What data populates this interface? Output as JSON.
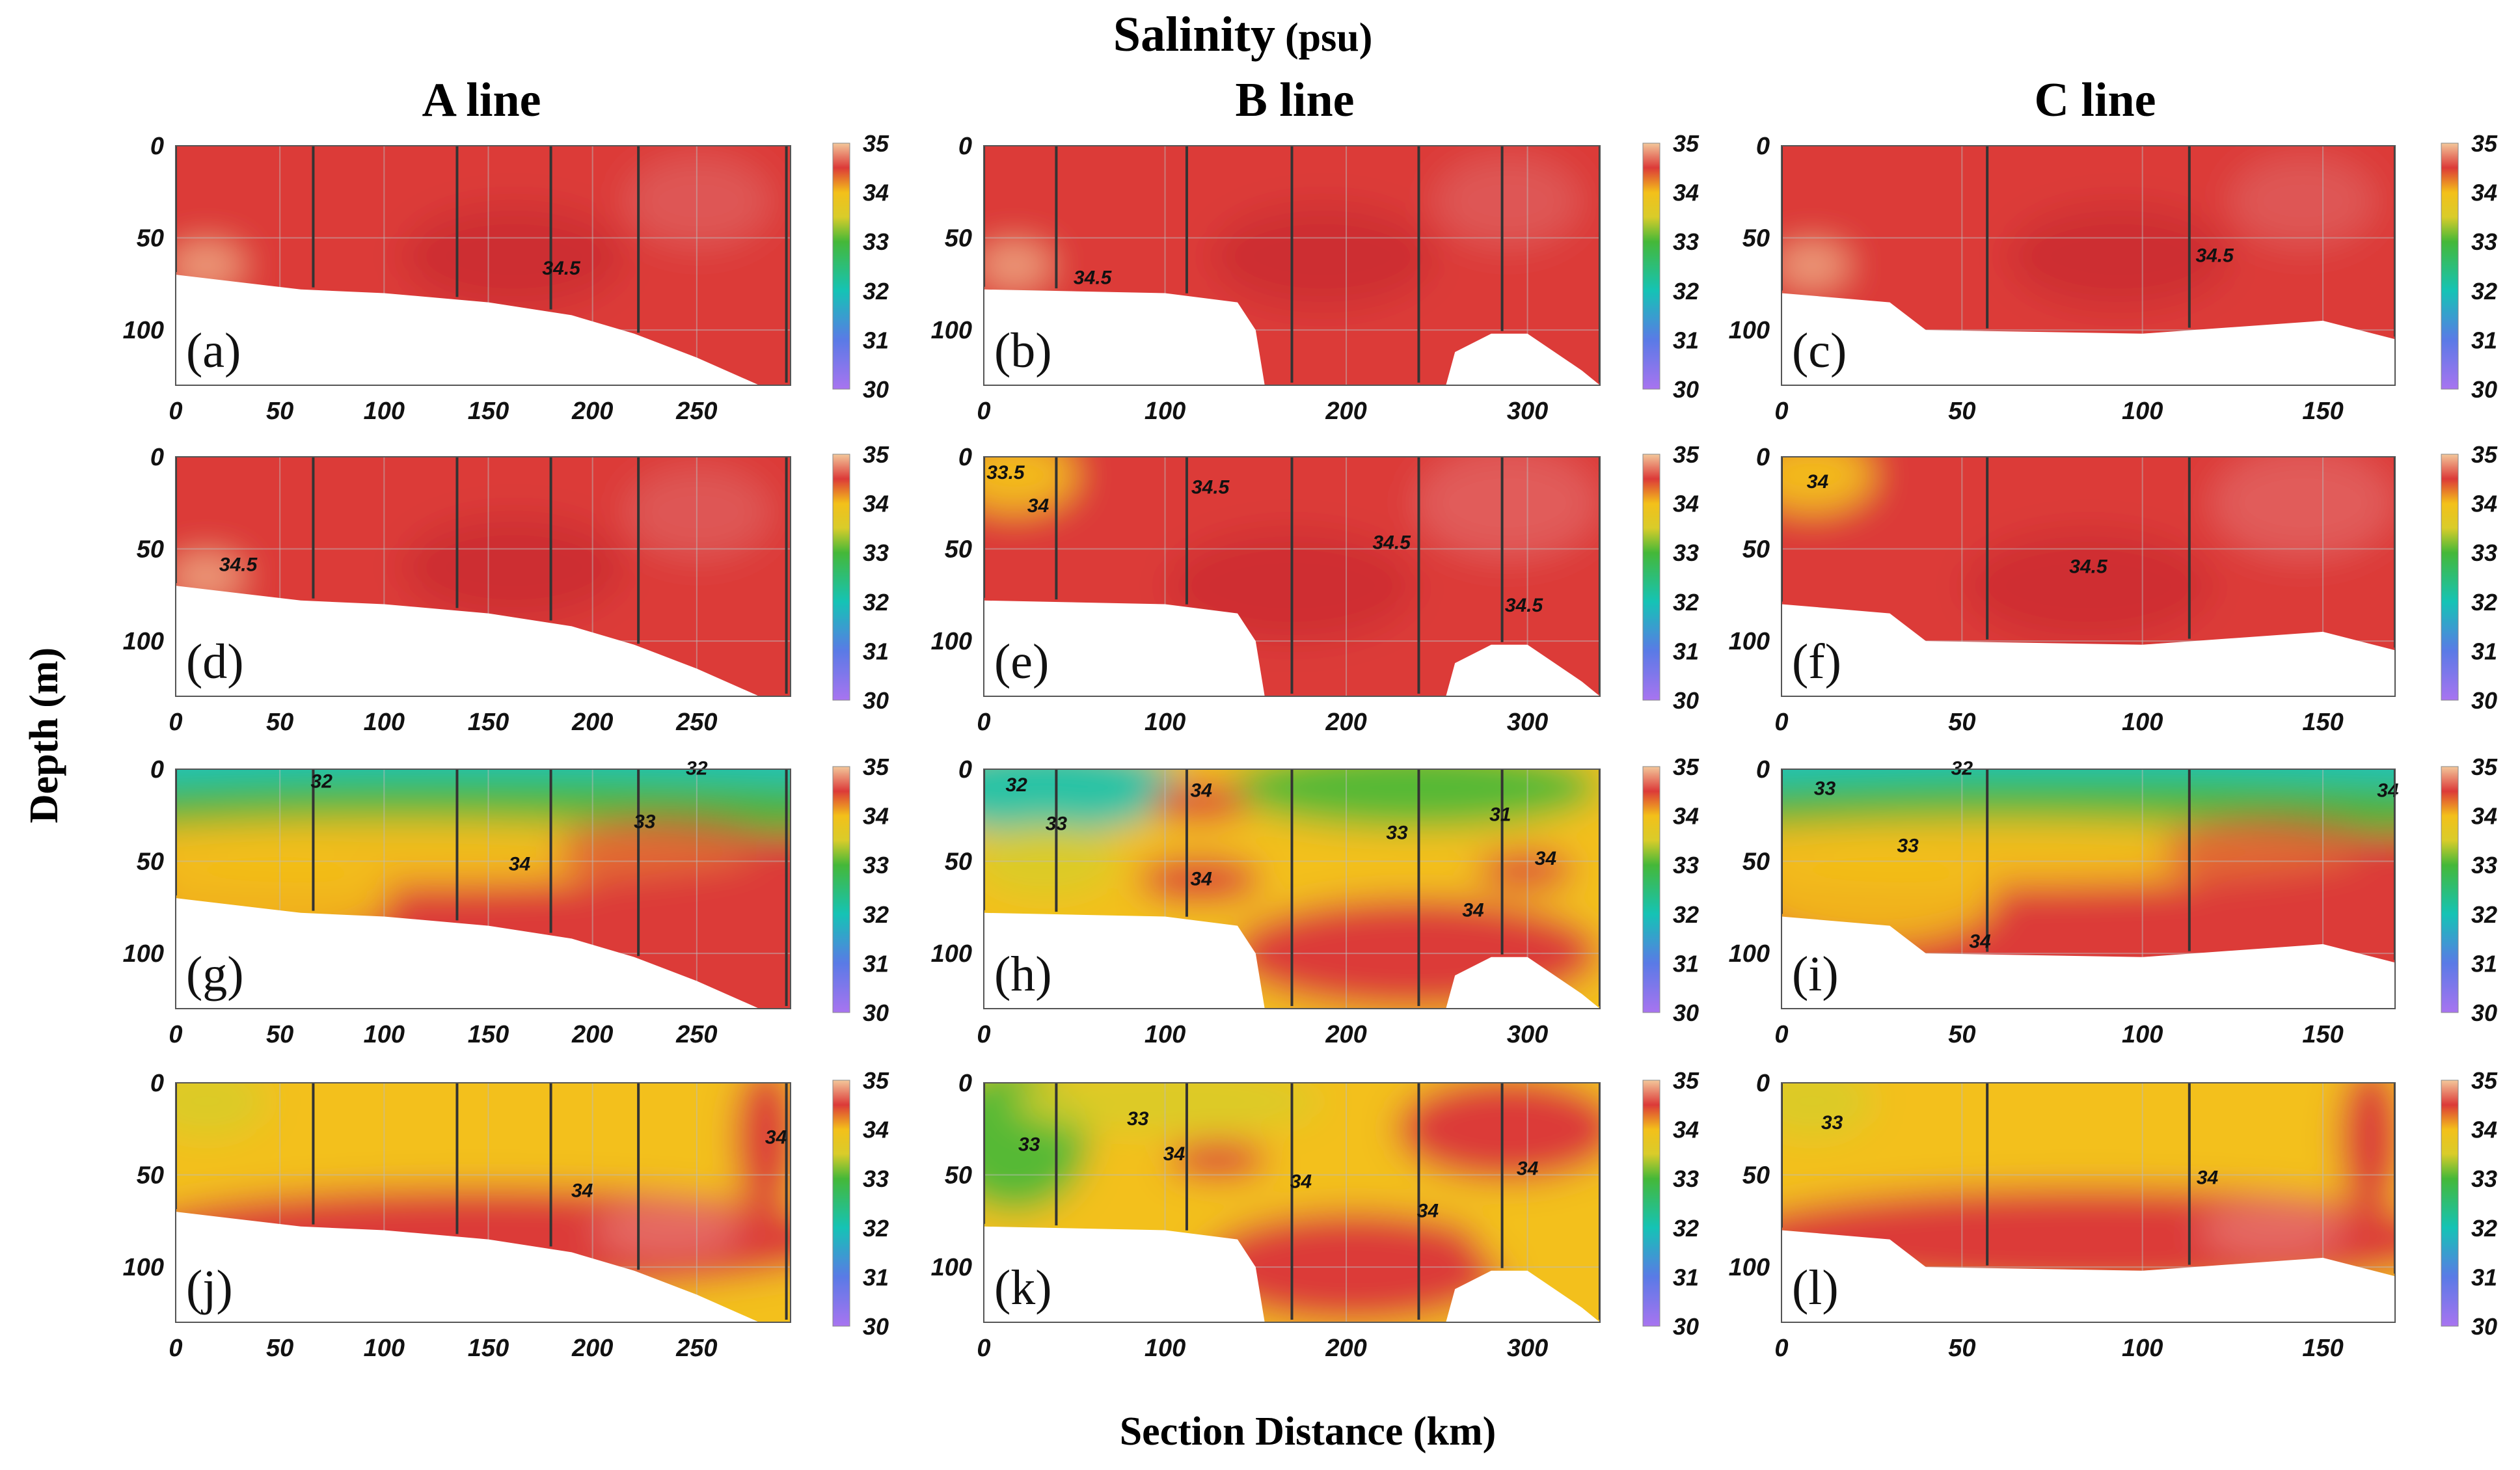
{
  "figure": {
    "title": "Salinity",
    "title_unit": "(psu)",
    "ylabel": "Depth (m)",
    "xlabel": "Section Distance (km)",
    "columns": [
      "A line",
      "B line",
      "C line"
    ]
  },
  "colors": {
    "c30": "#a874f0",
    "c31": "#5a7ae6",
    "c32": "#15c3b5",
    "c33": "#45b838",
    "c33_5": "#d9cc2a",
    "c34": "#f3c01a",
    "c34_5": "#dc3a38",
    "c35": "#f3c79a",
    "station_line": "#333333",
    "grid": "#bbbbbb",
    "mask": "#ffffff"
  },
  "chart_data": [
    {
      "panel": "(a)",
      "line": "A line",
      "type": "contour",
      "xlim": [
        0,
        295
      ],
      "ylim": [
        0,
        130
      ],
      "xticks": [
        0,
        50,
        100,
        150,
        200,
        250
      ],
      "yticks": [
        0,
        50,
        100
      ],
      "stations": [
        0,
        66,
        135,
        180,
        222,
        293
      ],
      "bottom": [
        [
          0,
          70
        ],
        [
          60,
          78
        ],
        [
          100,
          80
        ],
        [
          150,
          85
        ],
        [
          190,
          92
        ],
        [
          220,
          102
        ],
        [
          250,
          115
        ],
        [
          280,
          130
        ],
        [
          295,
          130
        ]
      ],
      "labels": [
        "34.5"
      ],
      "regime": "high",
      "clabels": [
        {
          "x": 185,
          "y": 70,
          "t": 0
        }
      ],
      "cbar": {
        "ticks": [
          "35",
          "34",
          "33",
          "32",
          "31",
          "30"
        ],
        "vmin": 30,
        "vmax": 35
      }
    },
    {
      "panel": "(b)",
      "line": "B line",
      "type": "contour",
      "xlim": [
        0,
        340
      ],
      "ylim": [
        0,
        130
      ],
      "xticks": [
        0,
        100,
        200,
        300
      ],
      "yticks": [
        0,
        50,
        100
      ],
      "stations": [
        0,
        40,
        112,
        170,
        240,
        286,
        340
      ],
      "bottom": [
        [
          0,
          78
        ],
        [
          100,
          80
        ],
        [
          140,
          85
        ],
        [
          150,
          100
        ],
        [
          155,
          130
        ],
        [
          255,
          130
        ],
        [
          260,
          112
        ],
        [
          280,
          102
        ],
        [
          300,
          102
        ],
        [
          330,
          122
        ],
        [
          340,
          130
        ]
      ],
      "labels": [
        "34.5"
      ],
      "regime": "high",
      "clabels": [
        {
          "x": 60,
          "y": 75,
          "t": 0
        }
      ],
      "cbar": {
        "ticks": [
          "35",
          "34",
          "33",
          "32",
          "31",
          "30"
        ],
        "vmin": 30,
        "vmax": 35
      }
    },
    {
      "panel": "(c)",
      "line": "C line",
      "type": "contour",
      "xlim": [
        0,
        170
      ],
      "ylim": [
        0,
        130
      ],
      "xticks": [
        0,
        50,
        100,
        150
      ],
      "yticks": [
        0,
        50,
        100
      ],
      "stations": [
        0,
        57,
        113,
        170
      ],
      "bottom": [
        [
          0,
          80
        ],
        [
          30,
          85
        ],
        [
          40,
          100
        ],
        [
          100,
          102
        ],
        [
          150,
          95
        ],
        [
          170,
          105
        ]
      ],
      "labels": [
        "34.5"
      ],
      "regime": "high",
      "clabels": [
        {
          "x": 120,
          "y": 63,
          "t": 0
        }
      ],
      "cbar": {
        "ticks": [
          "35",
          "34",
          "33",
          "32",
          "31",
          "30"
        ],
        "vmin": 30,
        "vmax": 35
      }
    },
    {
      "panel": "(d)",
      "line": "A line",
      "type": "contour",
      "xlim": [
        0,
        295
      ],
      "ylim": [
        0,
        130
      ],
      "xticks": [
        0,
        50,
        100,
        150,
        200,
        250
      ],
      "yticks": [
        0,
        50,
        100
      ],
      "stations": [
        0,
        66,
        135,
        180,
        222,
        293
      ],
      "bottom": [
        [
          0,
          70
        ],
        [
          60,
          78
        ],
        [
          100,
          80
        ],
        [
          150,
          85
        ],
        [
          190,
          92
        ],
        [
          220,
          102
        ],
        [
          250,
          115
        ],
        [
          280,
          130
        ],
        [
          295,
          130
        ]
      ],
      "labels": [
        "34.5"
      ],
      "regime": "high",
      "clabels": [
        {
          "x": 30,
          "y": 62,
          "t": 0
        }
      ],
      "cbar": {
        "ticks": [
          "35",
          "34",
          "33",
          "32",
          "31",
          "30"
        ],
        "vmin": 30,
        "vmax": 35
      }
    },
    {
      "panel": "(e)",
      "line": "B line",
      "type": "contour",
      "xlim": [
        0,
        340
      ],
      "ylim": [
        0,
        130
      ],
      "xticks": [
        0,
        100,
        200,
        300
      ],
      "yticks": [
        0,
        50,
        100
      ],
      "stations": [
        0,
        40,
        112,
        170,
        240,
        286,
        340
      ],
      "bottom": [
        [
          0,
          78
        ],
        [
          100,
          80
        ],
        [
          140,
          85
        ],
        [
          150,
          100
        ],
        [
          155,
          130
        ],
        [
          255,
          130
        ],
        [
          260,
          112
        ],
        [
          280,
          102
        ],
        [
          300,
          102
        ],
        [
          330,
          122
        ],
        [
          340,
          130
        ]
      ],
      "labels": [
        "33.5",
        "34",
        "34.5",
        "34.5",
        "34.5"
      ],
      "regime": "high_sw",
      "clabels": [
        {
          "x": 12,
          "y": 12,
          "t": 0
        },
        {
          "x": 30,
          "y": 30,
          "t": 1
        },
        {
          "x": 125,
          "y": 20,
          "t": 2
        },
        {
          "x": 225,
          "y": 50,
          "t": 3
        },
        {
          "x": 298,
          "y": 84,
          "t": 4
        }
      ],
      "cbar": {
        "ticks": [
          "35",
          "34",
          "33",
          "32",
          "31",
          "30"
        ],
        "vmin": 30,
        "vmax": 35
      }
    },
    {
      "panel": "(f)",
      "line": "C line",
      "type": "contour",
      "xlim": [
        0,
        170
      ],
      "ylim": [
        0,
        130
      ],
      "xticks": [
        0,
        50,
        100,
        150
      ],
      "yticks": [
        0,
        50,
        100
      ],
      "stations": [
        0,
        57,
        113,
        170
      ],
      "bottom": [
        [
          0,
          80
        ],
        [
          30,
          85
        ],
        [
          40,
          100
        ],
        [
          100,
          102
        ],
        [
          150,
          95
        ],
        [
          170,
          105
        ]
      ],
      "labels": [
        "34",
        "34.5"
      ],
      "regime": "high_sw",
      "clabels": [
        {
          "x": 10,
          "y": 17,
          "t": 0
        },
        {
          "x": 85,
          "y": 63,
          "t": 1
        }
      ],
      "cbar": {
        "ticks": [
          "35",
          "34",
          "33",
          "32",
          "31",
          "30"
        ],
        "vmin": 30,
        "vmax": 35
      }
    },
    {
      "panel": "(g)",
      "line": "A line",
      "type": "contour",
      "xlim": [
        0,
        295
      ],
      "ylim": [
        0,
        130
      ],
      "xticks": [
        0,
        50,
        100,
        150,
        200,
        250
      ],
      "yticks": [
        0,
        50,
        100
      ],
      "stations": [
        0,
        66,
        135,
        180,
        222,
        293
      ],
      "bottom": [
        [
          0,
          70
        ],
        [
          60,
          78
        ],
        [
          100,
          80
        ],
        [
          150,
          85
        ],
        [
          190,
          92
        ],
        [
          220,
          102
        ],
        [
          250,
          115
        ],
        [
          280,
          130
        ],
        [
          295,
          130
        ]
      ],
      "labels": [
        "32",
        "33",
        "34",
        "32"
      ],
      "regime": "strat",
      "clabels": [
        {
          "x": 70,
          "y": 10,
          "t": 0
        },
        {
          "x": 225,
          "y": 32,
          "t": 1
        },
        {
          "x": 165,
          "y": 55,
          "t": 2
        },
        {
          "x": 250,
          "y": 3,
          "t": 3
        }
      ],
      "cbar": {
        "ticks": [
          "35",
          "34",
          "33",
          "32",
          "31",
          "30"
        ],
        "vmin": 30,
        "vmax": 35
      }
    },
    {
      "panel": "(h)",
      "line": "B line",
      "type": "contour",
      "xlim": [
        0,
        340
      ],
      "ylim": [
        0,
        130
      ],
      "xticks": [
        0,
        100,
        200,
        300
      ],
      "yticks": [
        0,
        50,
        100
      ],
      "stations": [
        0,
        40,
        112,
        170,
        240,
        286,
        340
      ],
      "bottom": [
        [
          0,
          78
        ],
        [
          100,
          80
        ],
        [
          140,
          85
        ],
        [
          150,
          100
        ],
        [
          155,
          130
        ],
        [
          255,
          130
        ],
        [
          260,
          112
        ],
        [
          280,
          102
        ],
        [
          300,
          102
        ],
        [
          330,
          122
        ],
        [
          340,
          130
        ]
      ],
      "labels": [
        "32",
        "33",
        "34",
        "34",
        "33",
        "31",
        "34",
        "34"
      ],
      "regime": "mixed",
      "clabels": [
        {
          "x": 18,
          "y": 12,
          "t": 0
        },
        {
          "x": 40,
          "y": 33,
          "t": 1
        },
        {
          "x": 120,
          "y": 15,
          "t": 2
        },
        {
          "x": 120,
          "y": 63,
          "t": 3
        },
        {
          "x": 228,
          "y": 38,
          "t": 4
        },
        {
          "x": 285,
          "y": 28,
          "t": 5
        },
        {
          "x": 310,
          "y": 52,
          "t": 6
        },
        {
          "x": 270,
          "y": 80,
          "t": 7
        }
      ],
      "cbar": {
        "ticks": [
          "35",
          "34",
          "33",
          "32",
          "31",
          "30"
        ],
        "vmin": 30,
        "vmax": 35
      }
    },
    {
      "panel": "(i)",
      "line": "C line",
      "type": "contour",
      "xlim": [
        0,
        170
      ],
      "ylim": [
        0,
        130
      ],
      "xticks": [
        0,
        50,
        100,
        150
      ],
      "yticks": [
        0,
        50,
        100
      ],
      "stations": [
        0,
        57,
        113,
        170
      ],
      "bottom": [
        [
          0,
          80
        ],
        [
          30,
          85
        ],
        [
          40,
          100
        ],
        [
          100,
          102
        ],
        [
          150,
          95
        ],
        [
          170,
          105
        ]
      ],
      "labels": [
        "33",
        "33",
        "34",
        "34",
        "32"
      ],
      "regime": "strat",
      "clabels": [
        {
          "x": 12,
          "y": 14,
          "t": 0
        },
        {
          "x": 35,
          "y": 45,
          "t": 1
        },
        {
          "x": 168,
          "y": 15,
          "t": 2
        },
        {
          "x": 55,
          "y": 97,
          "t": 3
        },
        {
          "x": 50,
          "y": 3,
          "t": 4
        }
      ],
      "cbar": {
        "ticks": [
          "35",
          "34",
          "33",
          "32",
          "31",
          "30"
        ],
        "vmin": 30,
        "vmax": 35
      }
    },
    {
      "panel": "(j)",
      "line": "A line",
      "type": "contour",
      "xlim": [
        0,
        295
      ],
      "ylim": [
        0,
        130
      ],
      "xticks": [
        0,
        50,
        100,
        150,
        200,
        250
      ],
      "yticks": [
        0,
        50,
        100
      ],
      "stations": [
        0,
        66,
        135,
        180,
        222,
        293
      ],
      "bottom": [
        [
          0,
          70
        ],
        [
          60,
          78
        ],
        [
          100,
          80
        ],
        [
          150,
          85
        ],
        [
          190,
          92
        ],
        [
          220,
          102
        ],
        [
          250,
          115
        ],
        [
          280,
          130
        ],
        [
          295,
          130
        ]
      ],
      "labels": [
        "34",
        "34"
      ],
      "regime": "warm",
      "clabels": [
        {
          "x": 195,
          "y": 62,
          "t": 0
        },
        {
          "x": 288,
          "y": 33,
          "t": 1
        }
      ],
      "cbar": {
        "ticks": [
          "35",
          "34",
          "33",
          "32",
          "31",
          "30"
        ],
        "vmin": 30,
        "vmax": 35
      }
    },
    {
      "panel": "(k)",
      "line": "B line",
      "type": "contour",
      "xlim": [
        0,
        340
      ],
      "ylim": [
        0,
        130
      ],
      "xticks": [
        0,
        100,
        200,
        300
      ],
      "yticks": [
        0,
        50,
        100
      ],
      "stations": [
        0,
        40,
        112,
        170,
        240,
        286,
        340
      ],
      "bottom": [
        [
          0,
          78
        ],
        [
          100,
          80
        ],
        [
          140,
          85
        ],
        [
          150,
          100
        ],
        [
          155,
          130
        ],
        [
          255,
          130
        ],
        [
          260,
          112
        ],
        [
          280,
          102
        ],
        [
          300,
          102
        ],
        [
          330,
          122
        ],
        [
          340,
          130
        ]
      ],
      "labels": [
        "33",
        "33",
        "34",
        "34",
        "34",
        "34"
      ],
      "regime": "mixed_k",
      "clabels": [
        {
          "x": 85,
          "y": 23,
          "t": 0
        },
        {
          "x": 25,
          "y": 37,
          "t": 1
        },
        {
          "x": 105,
          "y": 42,
          "t": 2
        },
        {
          "x": 175,
          "y": 57,
          "t": 3
        },
        {
          "x": 245,
          "y": 73,
          "t": 4
        },
        {
          "x": 300,
          "y": 50,
          "t": 5
        }
      ],
      "cbar": {
        "ticks": [
          "35",
          "34",
          "33",
          "32",
          "31",
          "30"
        ],
        "vmin": 30,
        "vmax": 35
      }
    },
    {
      "panel": "(l)",
      "line": "C line",
      "type": "contour",
      "xlim": [
        0,
        170
      ],
      "ylim": [
        0,
        130
      ],
      "xticks": [
        0,
        50,
        100,
        150
      ],
      "yticks": [
        0,
        50,
        100
      ],
      "stations": [
        0,
        57,
        113,
        170
      ],
      "bottom": [
        [
          0,
          80
        ],
        [
          30,
          85
        ],
        [
          40,
          100
        ],
        [
          100,
          102
        ],
        [
          150,
          95
        ],
        [
          170,
          105
        ]
      ],
      "labels": [
        "33",
        "34"
      ],
      "regime": "warm",
      "clabels": [
        {
          "x": 14,
          "y": 25,
          "t": 0
        },
        {
          "x": 118,
          "y": 55,
          "t": 1
        }
      ],
      "cbar": {
        "ticks": [
          "35",
          "34",
          "33",
          "32",
          "31",
          "30"
        ],
        "vmin": 30,
        "vmax": 35
      }
    }
  ]
}
